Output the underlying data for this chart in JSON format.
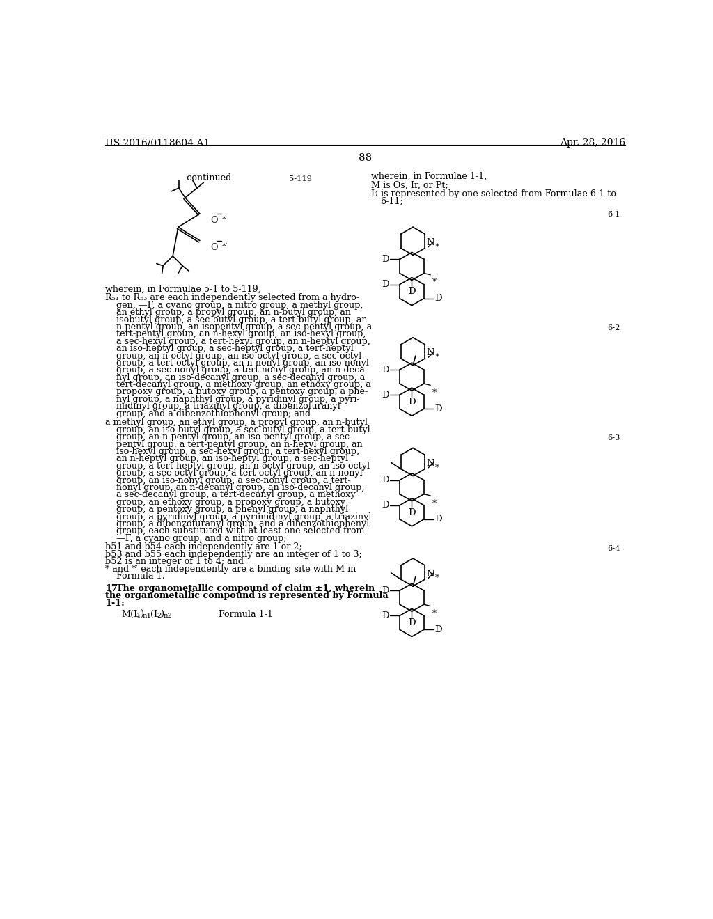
{
  "bg_color": "#ffffff",
  "header_left": "US 2016/0118604 A1",
  "header_right": "Apr. 28, 2016",
  "page_number": "88",
  "fs": 9.2,
  "lh": 13.5
}
